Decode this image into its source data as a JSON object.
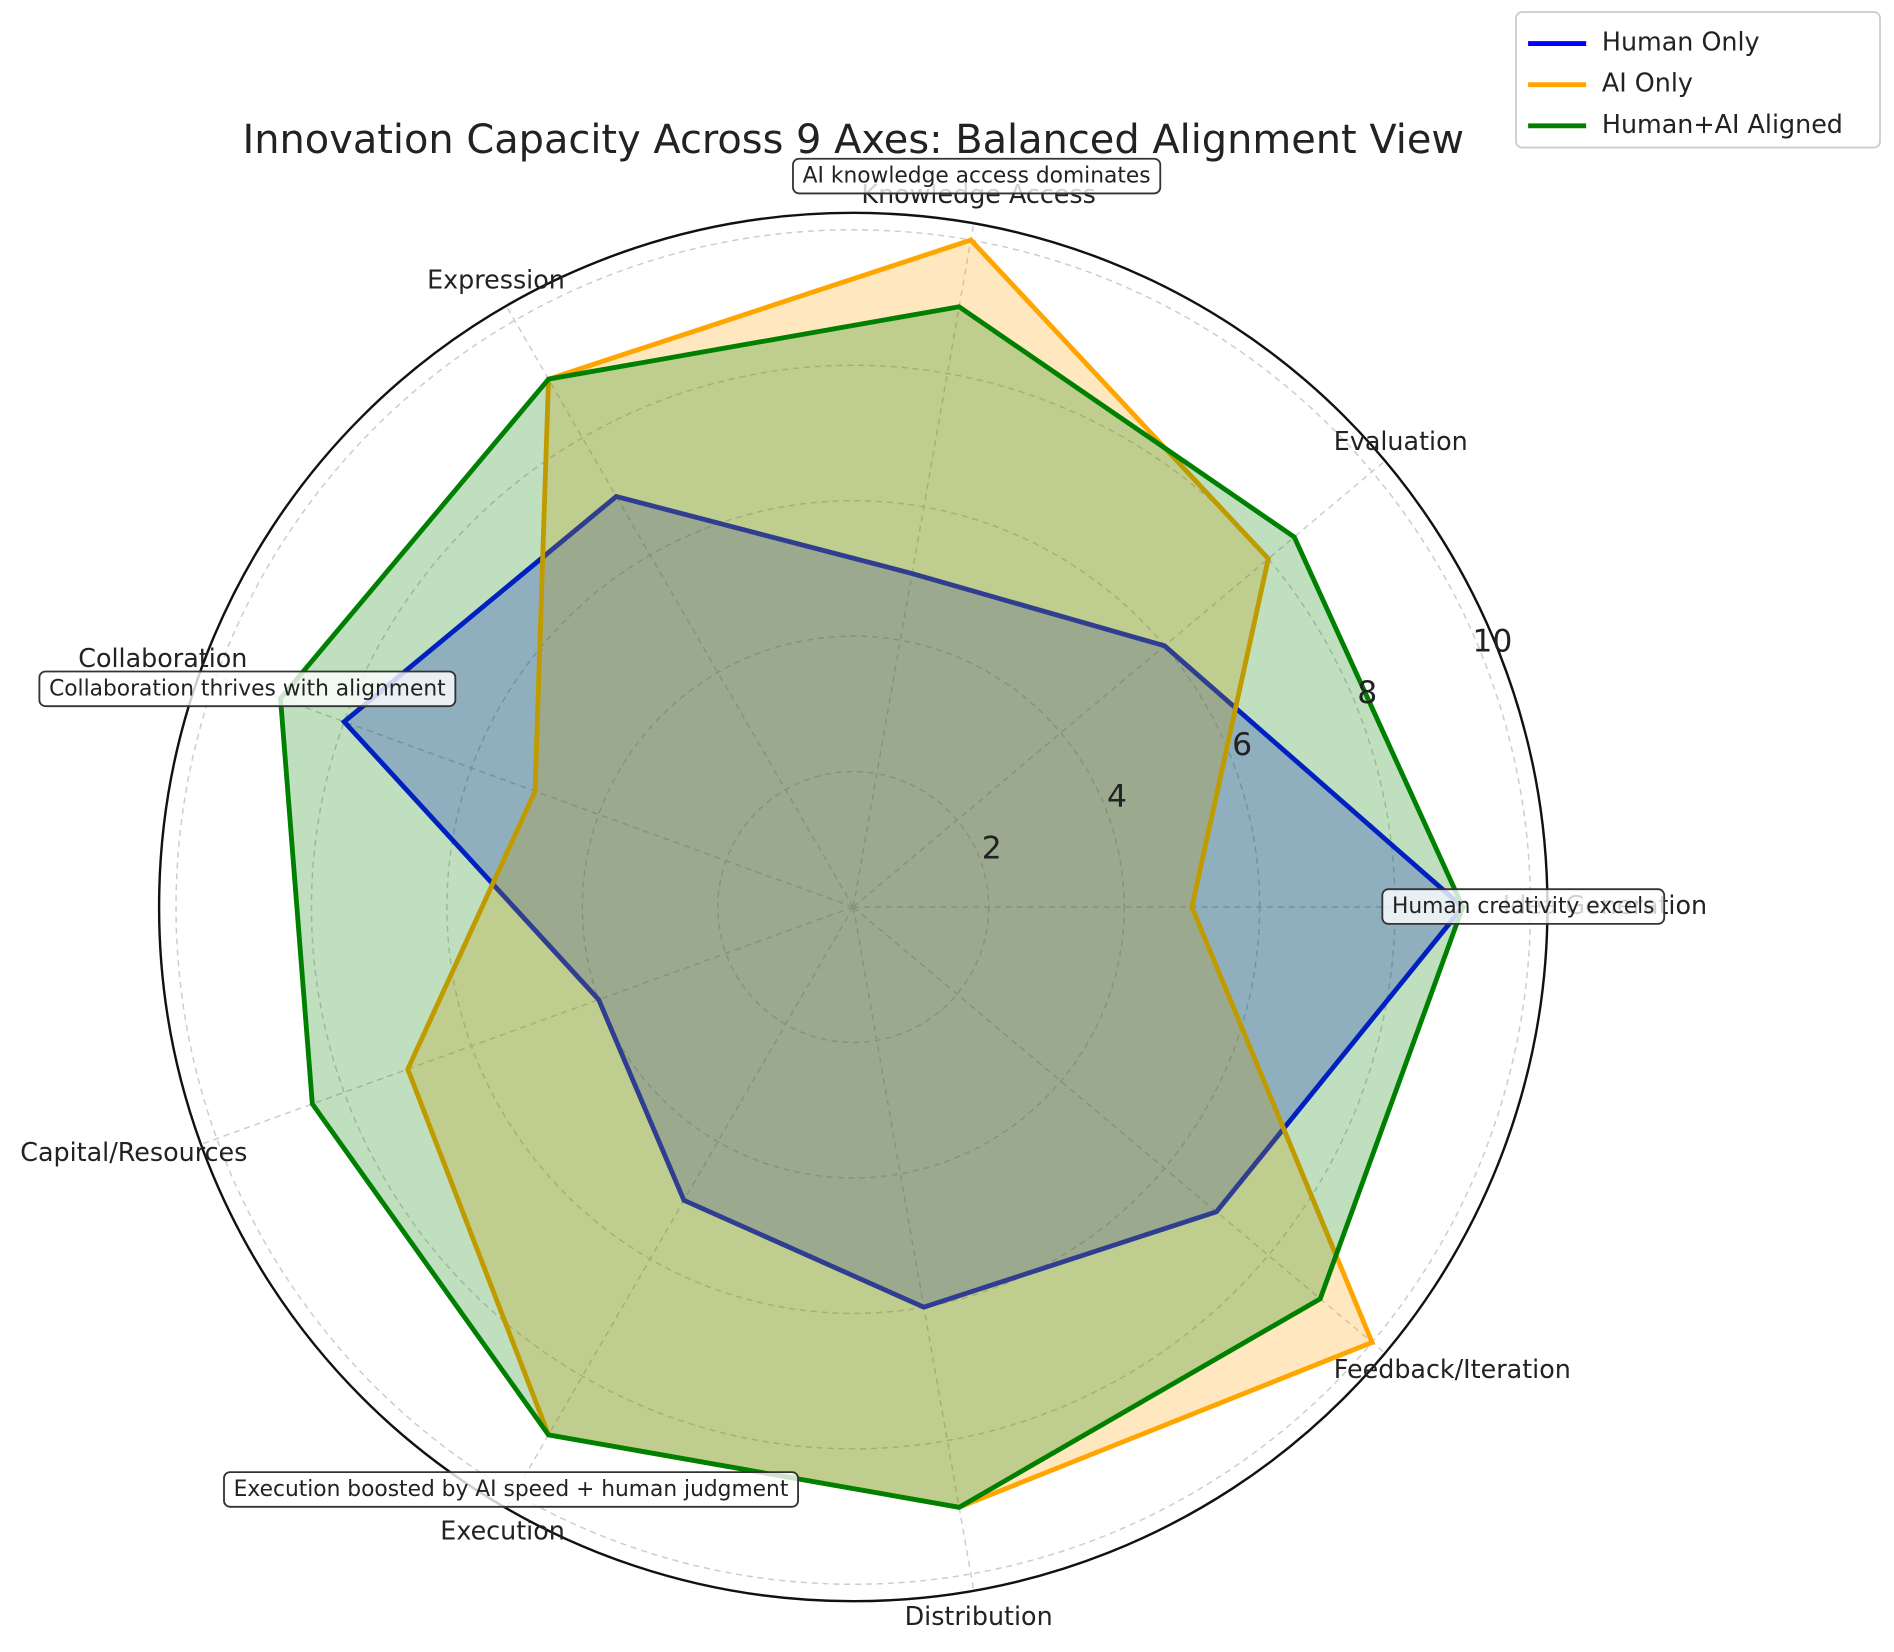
{
  "chart_data": {
    "type": "radar",
    "title": "Innovation Capacity Across 9 Axes: Balanced Alignment View",
    "categories": [
      "Idea Generation",
      "Evaluation",
      "Knowledge Access",
      "Expression",
      "Collaboration",
      "Capital/Resources",
      "Execution",
      "Distribution",
      "Feedback/Iteration"
    ],
    "series": [
      {
        "name": "Human Only",
        "color": "#0000ff",
        "values": [
          9,
          6,
          5,
          7,
          8,
          4,
          5,
          6,
          7
        ]
      },
      {
        "name": "AI Only",
        "color": "#ffa500",
        "values": [
          5,
          8,
          10,
          9,
          5,
          7,
          9,
          9,
          10
        ]
      },
      {
        "name": "Human+AI Aligned",
        "color": "#008000",
        "values": [
          9,
          8.5,
          9,
          9,
          9,
          8.5,
          9,
          9,
          9
        ]
      }
    ],
    "ylim": [
      0,
      10.25
    ],
    "yticks": [
      2,
      4,
      6,
      8,
      10
    ],
    "grid": true,
    "legend": "upper right",
    "annotations": [
      "Human creativity excels",
      "AI knowledge access dominates",
      "Collaboration thrives with alignment",
      "Execution boosted by AI speed + human judgment"
    ]
  }
}
